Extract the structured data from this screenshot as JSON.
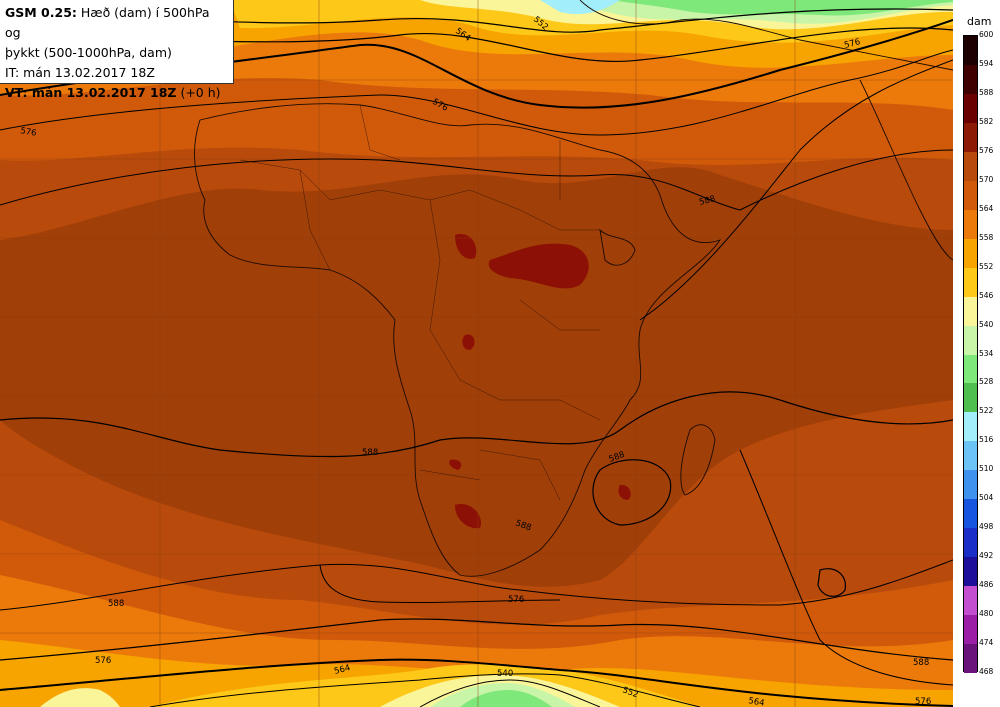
{
  "title": {
    "model": "GSM 0.25:",
    "desc_line1": "Hæð (dam) í 500hPa og",
    "desc_line2": "þykkt (500-1000hPa, dam)",
    "issue_time": "IT: mán 13.02.2017 18Z",
    "valid_label": "VT: mán 13.02.2017 18Z",
    "valid_offset": "(+0 h)"
  },
  "legend": {
    "unit": "dam",
    "levels": [
      {
        "label": "600",
        "color": "#1a0000"
      },
      {
        "label": "594",
        "color": "#3f0000"
      },
      {
        "label": "588",
        "color": "#6b0000"
      },
      {
        "label": "582",
        "color": "#8c1a05"
      },
      {
        "label": "576",
        "color": "#b84a0c"
      },
      {
        "label": "570",
        "color": "#d05a0a"
      },
      {
        "label": "564",
        "color": "#eb7a0a"
      },
      {
        "label": "558",
        "color": "#f7a300"
      },
      {
        "label": "552",
        "color": "#fdc818"
      },
      {
        "label": "546",
        "color": "#fbf59a"
      },
      {
        "label": "540",
        "color": "#c8f5a8"
      },
      {
        "label": "534",
        "color": "#7fe87a"
      },
      {
        "label": "528",
        "color": "#4fc050"
      },
      {
        "label": "522",
        "color": "#a2eefa"
      },
      {
        "label": "516",
        "color": "#6cc3f5"
      },
      {
        "label": "510",
        "color": "#3f92ee"
      },
      {
        "label": "504",
        "color": "#1555e0"
      },
      {
        "label": "498",
        "color": "#1a2ec8"
      },
      {
        "label": "492",
        "color": "#1c0f9a"
      },
      {
        "label": "486",
        "color": "#c34fd0"
      },
      {
        "label": "480",
        "color": "#9a1fa6"
      },
      {
        "label": "474",
        "color": "#6a137a"
      },
      {
        "label": "468",
        "color": "#430b4f"
      }
    ]
  },
  "contour_labels": {
    "top_564": "564",
    "top_552": "552",
    "top_right_576": "576",
    "mid_576a": "576",
    "mid_576b": "576",
    "ne_588": "588",
    "center_588": "588",
    "madagascar_588": "588",
    "sa_588": "588",
    "west_588": "588",
    "south_576": "576",
    "sw_576": "576",
    "se_588": "588",
    "bottom_564": "564",
    "bottom_540": "540",
    "bottom_552": "552",
    "bottom_564b": "564",
    "bottom_576": "576"
  }
}
